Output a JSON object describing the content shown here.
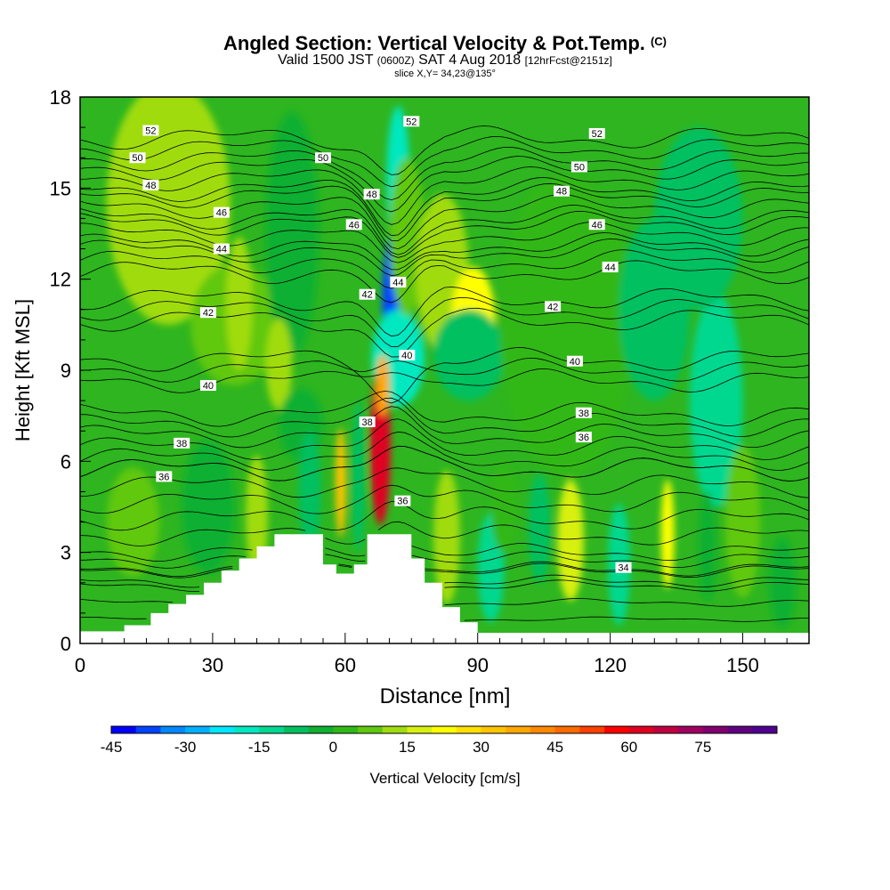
{
  "titles": {
    "main": "Angled Section: Vertical Velocity & Pot.Temp.",
    "main_unit": "(C)",
    "valid_pre": "Valid 1500 JST",
    "valid_z": "(0600Z)",
    "valid_date": "SAT 4 Aug 2018",
    "valid_fcst": "[12hrFcst@2151z]",
    "slice": "slice X,Y= 34,23@135°"
  },
  "chart_data": {
    "type": "heatmap",
    "title": "Angled Section: Vertical Velocity & Pot.Temp. (C)",
    "xlabel": "Distance [nm]",
    "ylabel": "Height [Kft MSL]",
    "xlim": [
      0,
      165
    ],
    "ylim": [
      0,
      18
    ],
    "x_ticks": [
      0,
      30,
      60,
      90,
      120,
      150
    ],
    "x_tick_labels": [
      "0",
      "30",
      "60",
      "90",
      "120",
      "150"
    ],
    "y_ticks": [
      0,
      3,
      6,
      9,
      12,
      15,
      18
    ],
    "y_tick_labels": [
      "0",
      "3",
      "6",
      "9",
      "12",
      "15",
      "18"
    ],
    "colorbar": {
      "label": "Vertical Velocity [cm/s]",
      "min": -45,
      "max": 90,
      "step": 5,
      "tick_labels": [
        "-45",
        "-30",
        "-15",
        "0",
        "15",
        "30",
        "45",
        "60",
        "75"
      ],
      "colors": [
        "#0000ff",
        "#0044ff",
        "#0088ff",
        "#00b0ff",
        "#00e8ff",
        "#00e8c0",
        "#00d890",
        "#00c060",
        "#10b030",
        "#30b818",
        "#60c810",
        "#a0dc10",
        "#d8f010",
        "#ffff00",
        "#ffe000",
        "#ffc400",
        "#ffa800",
        "#ff8800",
        "#ff6a00",
        "#ff4000",
        "#ff0000",
        "#e00020",
        "#c00040",
        "#a00060",
        "#800070",
        "#600080",
        "#500090"
      ]
    },
    "terrain": [
      {
        "x": 0,
        "h": 0.4
      },
      {
        "x": 10,
        "h": 0.6
      },
      {
        "x": 16,
        "h": 1.0
      },
      {
        "x": 20,
        "h": 1.3
      },
      {
        "x": 24,
        "h": 1.6
      },
      {
        "x": 28,
        "h": 2.0
      },
      {
        "x": 32,
        "h": 2.4
      },
      {
        "x": 36,
        "h": 2.8
      },
      {
        "x": 40,
        "h": 3.2
      },
      {
        "x": 44,
        "h": 3.6
      },
      {
        "x": 52,
        "h": 3.6
      },
      {
        "x": 55,
        "h": 2.6
      },
      {
        "x": 58,
        "h": 2.3
      },
      {
        "x": 62,
        "h": 2.6
      },
      {
        "x": 65,
        "h": 3.6
      },
      {
        "x": 72,
        "h": 3.6
      },
      {
        "x": 75,
        "h": 2.8
      },
      {
        "x": 78,
        "h": 2.0
      },
      {
        "x": 82,
        "h": 1.2
      },
      {
        "x": 86,
        "h": 0.7
      },
      {
        "x": 90,
        "h": 0.35
      },
      {
        "x": 165,
        "h": 0.35
      }
    ],
    "cells": [
      {
        "x": 20,
        "y": 14.5,
        "rx": 14,
        "ry": 4,
        "v": 10
      },
      {
        "x": 35,
        "y": 10.5,
        "rx": 10,
        "ry": 2,
        "v": 5
      },
      {
        "x": 48,
        "y": 13.5,
        "rx": 6,
        "ry": 4,
        "v": -5
      },
      {
        "x": 36,
        "y": 11.2,
        "rx": 3,
        "ry": 2.2,
        "v": 11
      },
      {
        "x": 45,
        "y": 9.2,
        "rx": 3,
        "ry": 1.5,
        "v": 13
      },
      {
        "x": 50,
        "y": 7.2,
        "rx": 5,
        "ry": 1.2,
        "v": -4
      },
      {
        "x": 72,
        "y": 15.3,
        "rx": 2.6,
        "ry": 2.4,
        "v": -18
      },
      {
        "x": 71,
        "y": 11.2,
        "rx": 2.6,
        "ry": 2.4,
        "v": -40
      },
      {
        "x": 72,
        "y": 9.4,
        "rx": 6,
        "ry": 1.6,
        "v": -20
      },
      {
        "x": 74,
        "y": 13.4,
        "rx": 4,
        "ry": 2.6,
        "v": 8
      },
      {
        "x": 82,
        "y": 12.2,
        "rx": 6,
        "ry": 2.6,
        "v": 12
      },
      {
        "x": 89,
        "y": 10.6,
        "rx": 5,
        "ry": 1.8,
        "v": 22
      },
      {
        "x": 88,
        "y": 9.5,
        "rx": 8,
        "ry": 1.5,
        "v": -8
      },
      {
        "x": 110,
        "y": 10.5,
        "rx": 15,
        "ry": 5,
        "v": 4
      },
      {
        "x": 130,
        "y": 11.0,
        "rx": 8,
        "ry": 3,
        "v": -10
      },
      {
        "x": 144,
        "y": 8.0,
        "rx": 6,
        "ry": 3.5,
        "v": -12
      },
      {
        "x": 140,
        "y": 14.0,
        "rx": 10,
        "ry": 3,
        "v": -6
      },
      {
        "x": 68,
        "y": 6.5,
        "rx": 2.3,
        "ry": 2.6,
        "v": 62
      },
      {
        "x": 68.5,
        "y": 8.5,
        "rx": 1.5,
        "ry": 1.0,
        "v": 38
      },
      {
        "x": 59,
        "y": 5.3,
        "rx": 1.2,
        "ry": 1.8,
        "v": 30
      },
      {
        "x": 63,
        "y": 5.5,
        "rx": 1.5,
        "ry": 2.5,
        "v": -8
      },
      {
        "x": 52,
        "y": 5.0,
        "rx": 2.5,
        "ry": 2,
        "v": -10
      },
      {
        "x": 40,
        "y": 4.2,
        "rx": 2.5,
        "ry": 2,
        "v": 12
      },
      {
        "x": 29,
        "y": 4.5,
        "rx": 6,
        "ry": 2.2,
        "v": -4
      },
      {
        "x": 12,
        "y": 4.0,
        "rx": 6,
        "ry": 1.8,
        "v": 8
      },
      {
        "x": 83,
        "y": 3.5,
        "rx": 3,
        "ry": 2.2,
        "v": 10
      },
      {
        "x": 93,
        "y": 2.5,
        "rx": 3,
        "ry": 1.8,
        "v": -12
      },
      {
        "x": 104,
        "y": 3.8,
        "rx": 2.5,
        "ry": 1.8,
        "v": -8
      },
      {
        "x": 111,
        "y": 3.4,
        "rx": 3,
        "ry": 2.0,
        "v": 17
      },
      {
        "x": 122,
        "y": 2.6,
        "rx": 2.5,
        "ry": 2.0,
        "v": -15
      },
      {
        "x": 133,
        "y": 3.6,
        "rx": 1.5,
        "ry": 1.8,
        "v": 22
      },
      {
        "x": 142,
        "y": 3.2,
        "rx": 2,
        "ry": 1.8,
        "v": -4
      },
      {
        "x": 150,
        "y": 4.0,
        "rx": 4,
        "ry": 2.5,
        "v": 7
      },
      {
        "x": 96,
        "y": 4.5,
        "rx": 3,
        "ry": 1.5,
        "v": 4
      },
      {
        "x": 159,
        "y": 2.0,
        "rx": 3,
        "ry": 1.5,
        "v": -4
      }
    ],
    "theta_contours": [
      {
        "level": 52,
        "h": 16.3
      },
      {
        "level": 50,
        "h": 15.3
      },
      {
        "level": 48,
        "h": 14.4
      },
      {
        "level": 46,
        "h": 13.5
      },
      {
        "level": 44,
        "h": 12.6
      },
      {
        "level": 42,
        "h": 11.0
      },
      {
        "level": 40,
        "h": 9.0
      },
      {
        "level": 38,
        "h": 7.2
      },
      {
        "level": 36,
        "h": 6.1
      },
      {
        "level": 34,
        "h": 2.4
      }
    ],
    "contour_labels": [
      {
        "text": "52",
        "x": 16,
        "y": 16.9
      },
      {
        "text": "52",
        "x": 75,
        "y": 17.2
      },
      {
        "text": "52",
        "x": 117,
        "y": 16.8
      },
      {
        "text": "50",
        "x": 13,
        "y": 16.0
      },
      {
        "text": "50",
        "x": 55,
        "y": 16.0
      },
      {
        "text": "50",
        "x": 113,
        "y": 15.7
      },
      {
        "text": "48",
        "x": 16,
        "y": 15.1
      },
      {
        "text": "48",
        "x": 66,
        "y": 14.8
      },
      {
        "text": "48",
        "x": 109,
        "y": 14.9
      },
      {
        "text": "46",
        "x": 32,
        "y": 14.2
      },
      {
        "text": "46",
        "x": 62,
        "y": 13.8
      },
      {
        "text": "46",
        "x": 117,
        "y": 13.8
      },
      {
        "text": "44",
        "x": 32,
        "y": 13.0
      },
      {
        "text": "44",
        "x": 72,
        "y": 11.9
      },
      {
        "text": "44",
        "x": 120,
        "y": 12.4
      },
      {
        "text": "42",
        "x": 29,
        "y": 10.9
      },
      {
        "text": "42",
        "x": 65,
        "y": 11.5
      },
      {
        "text": "42",
        "x": 107,
        "y": 11.1
      },
      {
        "text": "40",
        "x": 29,
        "y": 8.5
      },
      {
        "text": "40",
        "x": 74,
        "y": 9.5
      },
      {
        "text": "40",
        "x": 112,
        "y": 9.3
      },
      {
        "text": "38",
        "x": 23,
        "y": 6.6
      },
      {
        "text": "38",
        "x": 65,
        "y": 7.3
      },
      {
        "text": "38",
        "x": 114,
        "y": 7.6
      },
      {
        "text": "36",
        "x": 19,
        "y": 5.5
      },
      {
        "text": "36",
        "x": 73,
        "y": 4.7
      },
      {
        "text": "36",
        "x": 114,
        "y": 6.8
      },
      {
        "text": "34",
        "x": 123,
        "y": 2.5
      }
    ]
  }
}
